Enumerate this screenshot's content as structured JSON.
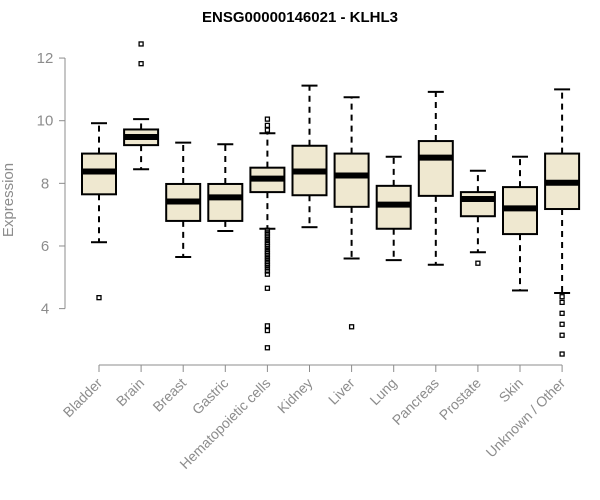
{
  "chart_data": {
    "type": "boxplot",
    "title": "ENSG00000146021 - KLHL3",
    "ylabel": "Expression",
    "xlabel": "",
    "ylim": [
      2.2,
      12.8
    ],
    "yticks": [
      4,
      6,
      8,
      10,
      12
    ],
    "categories": [
      "Bladder",
      "Brain",
      "Breast",
      "Gastric",
      "Hematopoietic cells",
      "Kidney",
      "Liver",
      "Lung",
      "Pancreas",
      "Prostate",
      "Skin",
      "Unknown / Other"
    ],
    "boxes": [
      {
        "q1": 7.65,
        "median": 8.38,
        "q3": 8.95,
        "whisker_low": 6.12,
        "whisker_high": 9.92,
        "outliers": [
          4.35
        ]
      },
      {
        "q1": 9.22,
        "median": 9.48,
        "q3": 9.72,
        "whisker_low": 8.45,
        "whisker_high": 10.05,
        "outliers": [
          11.82,
          12.45
        ]
      },
      {
        "q1": 6.8,
        "median": 7.42,
        "q3": 7.98,
        "whisker_low": 5.65,
        "whisker_high": 9.3,
        "outliers": []
      },
      {
        "q1": 6.8,
        "median": 7.55,
        "q3": 7.98,
        "whisker_low": 6.48,
        "whisker_high": 9.25,
        "outliers": []
      },
      {
        "q1": 7.72,
        "median": 8.15,
        "q3": 8.5,
        "whisker_low": 6.55,
        "whisker_high": 9.6,
        "outliers": [
          10.05,
          9.85,
          9.7,
          6.5,
          6.42,
          6.35,
          6.28,
          6.2,
          6.12,
          6.05,
          5.98,
          5.9,
          5.82,
          5.75,
          5.68,
          5.6,
          5.52,
          5.45,
          5.38,
          5.3,
          5.2,
          5.1,
          4.65,
          3.45,
          3.3,
          2.75
        ]
      },
      {
        "q1": 7.62,
        "median": 8.38,
        "q3": 9.2,
        "whisker_low": 6.6,
        "whisker_high": 11.12,
        "outliers": []
      },
      {
        "q1": 7.25,
        "median": 8.25,
        "q3": 8.95,
        "whisker_low": 5.6,
        "whisker_high": 10.75,
        "outliers": [
          3.42
        ]
      },
      {
        "q1": 6.55,
        "median": 7.32,
        "q3": 7.92,
        "whisker_low": 5.55,
        "whisker_high": 8.85,
        "outliers": []
      },
      {
        "q1": 7.6,
        "median": 8.82,
        "q3": 9.35,
        "whisker_low": 5.4,
        "whisker_high": 10.92,
        "outliers": []
      },
      {
        "q1": 6.95,
        "median": 7.5,
        "q3": 7.72,
        "whisker_low": 5.8,
        "whisker_high": 8.4,
        "outliers": [
          5.45
        ]
      },
      {
        "q1": 6.38,
        "median": 7.2,
        "q3": 7.88,
        "whisker_low": 4.58,
        "whisker_high": 8.85,
        "outliers": []
      },
      {
        "q1": 7.18,
        "median": 8.02,
        "q3": 8.95,
        "whisker_low": 4.5,
        "whisker_high": 11.0,
        "outliers": [
          4.38,
          4.2,
          3.85,
          3.5,
          3.15,
          2.55
        ]
      }
    ],
    "box_fill": "#efe8d0",
    "box_stroke": "#000000",
    "median_color": "#000000",
    "axis_color": "#8c8c8c",
    "grid": false,
    "legend": "none"
  }
}
